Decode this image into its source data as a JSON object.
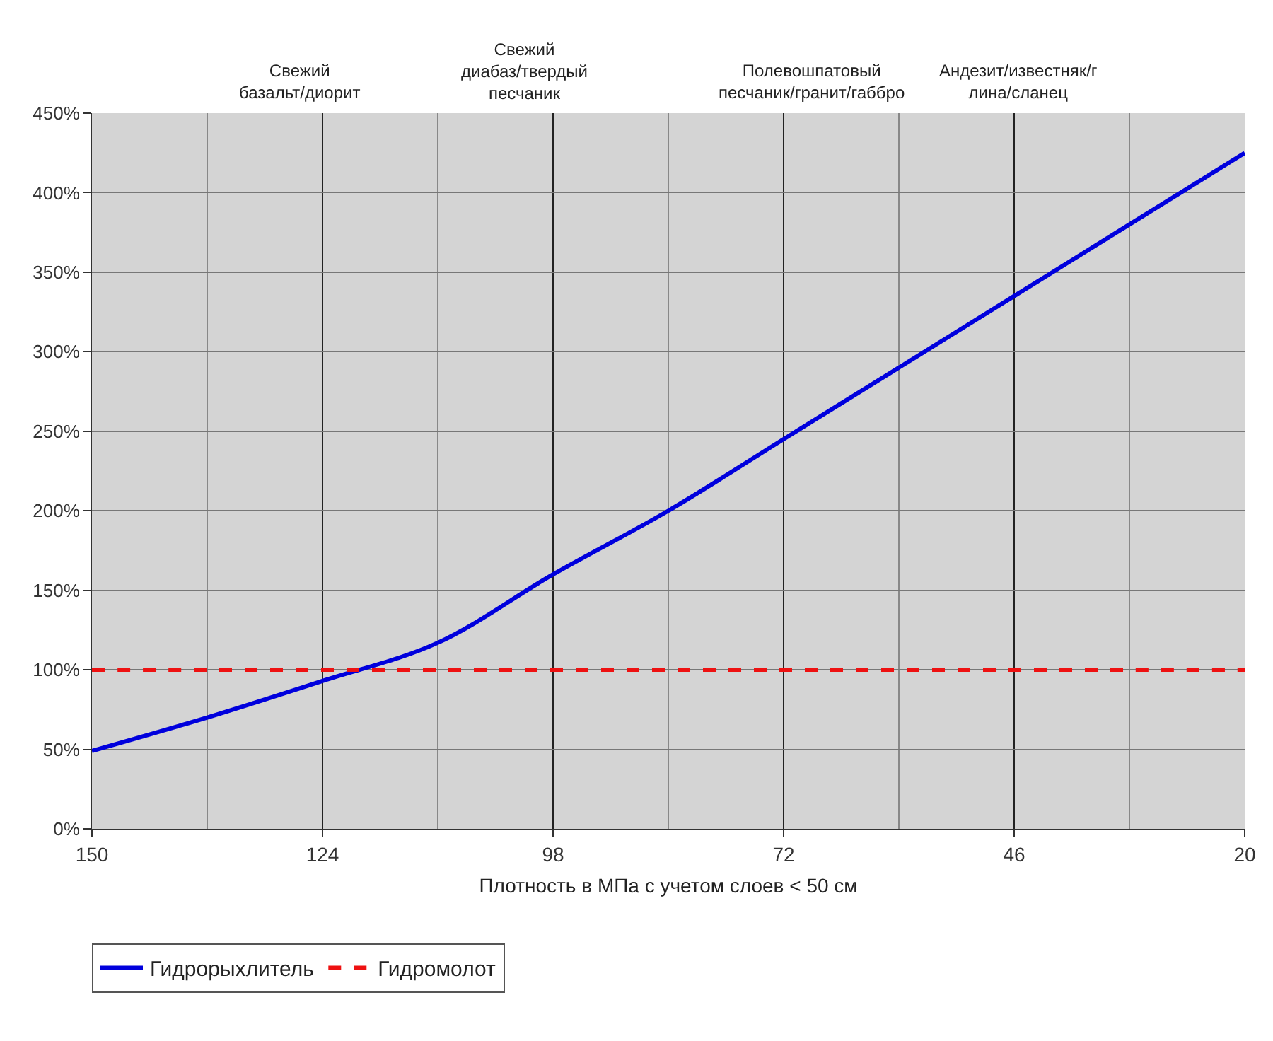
{
  "chart_data": {
    "type": "line",
    "xlabel": "Плотность в МПа с учетом слоев < 50 см",
    "annotations": [
      "Свежий\nбазальт/диорит",
      "Свежий\nдиабаз/твердый\nпесчаник",
      "Полевошпатовый\nпесчаник/гранит/габбро",
      "Андезит/известняк/г\nлина/сланец"
    ],
    "x": [
      150,
      137,
      124,
      111,
      98,
      85,
      72,
      59,
      46,
      33,
      20
    ],
    "series": [
      {
        "name": "Гидрорыхлитель",
        "color": "#0000dd",
        "values": [
          49,
          70,
          93,
          117,
          160,
          200,
          245,
          290,
          335,
          380,
          425
        ],
        "line_style": "solid"
      },
      {
        "name": "Гидромолот",
        "color": "#ee1111",
        "values": [
          100,
          100,
          100,
          100,
          100,
          100,
          100,
          100,
          100,
          100,
          100
        ],
        "line_style": "dashed"
      }
    ],
    "xlim": [
      150,
      20
    ],
    "xticks": [
      150,
      124,
      98,
      72,
      46,
      20
    ],
    "ylim": [
      0,
      450
    ],
    "yticks": [
      {
        "value": 0,
        "label": "0%"
      },
      {
        "value": 50,
        "label": "50%"
      },
      {
        "value": 100,
        "label": "100%"
      },
      {
        "value": 150,
        "label": "150%"
      },
      {
        "value": 200,
        "label": "200%"
      },
      {
        "value": 250,
        "label": "250%"
      },
      {
        "value": 300,
        "label": "300%"
      },
      {
        "value": 350,
        "label": "350%"
      },
      {
        "value": 400,
        "label": "400%"
      },
      {
        "value": 450,
        "label": "450%"
      }
    ],
    "grid": true,
    "legend": "bottom left",
    "marker": "none"
  }
}
